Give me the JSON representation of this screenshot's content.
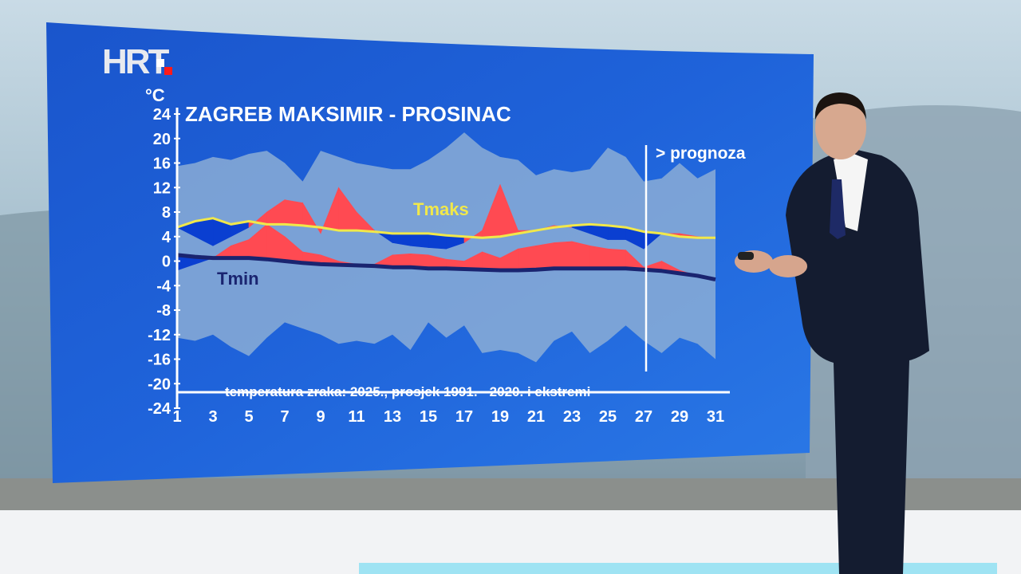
{
  "broadcaster": {
    "logo_text": "HRT"
  },
  "chart_data": {
    "type": "area",
    "title": "ZAGREB MAKSIMIR - PROSINAC",
    "subtitle": "temperatura zraka: 2025., prosjek 1991. - 2020. i ekstremi",
    "ylabel": "°C",
    "xlabel": "",
    "ylim": [
      -24,
      24
    ],
    "xlim": [
      1,
      31
    ],
    "y_ticks": [
      24,
      20,
      16,
      12,
      8,
      4,
      0,
      -4,
      -8,
      -12,
      -16,
      -20,
      -24
    ],
    "x_ticks": [
      1,
      3,
      5,
      7,
      9,
      11,
      13,
      15,
      17,
      19,
      21,
      23,
      25,
      27,
      29,
      31
    ],
    "forecast_from_day": 27,
    "forecast_label": "> prognoza",
    "grid": false,
    "days": [
      1,
      2,
      3,
      4,
      5,
      6,
      7,
      8,
      9,
      10,
      11,
      12,
      13,
      14,
      15,
      16,
      17,
      18,
      19,
      20,
      21,
      22,
      23,
      24,
      25,
      26,
      27,
      28,
      29,
      30,
      31
    ],
    "series": [
      {
        "name": "",
        "role": "record_max",
        "values": [
          15.5,
          16,
          17,
          16.5,
          17.5,
          18,
          16,
          13,
          18,
          17,
          16,
          15.5,
          15,
          15,
          16.5,
          18.5,
          21,
          18.5,
          17,
          16.5,
          14,
          15,
          14.5,
          15,
          18.5,
          17,
          13,
          13.5,
          16,
          13.5,
          15
        ]
      },
      {
        "name": "",
        "role": "record_min",
        "values": [
          -12.5,
          -13,
          -12,
          -14,
          -15.5,
          -12.5,
          -10,
          -11,
          -12,
          -13.5,
          -13,
          -13.5,
          -12,
          -14.5,
          -10,
          -12.5,
          -10.5,
          -15,
          -14.5,
          -15,
          -16.5,
          -13,
          -11.5,
          -15,
          -13,
          -10.5,
          -13,
          -15,
          -12.5,
          -13.5,
          -16
        ]
      },
      {
        "name": "Tmaks",
        "role": "average_max",
        "values": [
          5.5,
          6.5,
          7,
          6,
          6.5,
          6,
          6,
          5.8,
          5.5,
          5,
          5,
          4.8,
          4.5,
          4.5,
          4.5,
          4.2,
          4,
          3.8,
          4,
          4.5,
          5,
          5.5,
          5.8,
          6,
          5.8,
          5.5,
          4.8,
          4.5,
          4,
          3.8,
          3.8
        ]
      },
      {
        "name": "",
        "role": "observed_max_2025",
        "values": [
          5.5,
          4,
          2.5,
          4,
          5.5,
          8,
          10,
          9.5,
          4.5,
          12,
          8,
          5,
          3,
          2.5,
          2.2,
          2,
          3,
          5,
          12.5,
          5,
          5,
          5.8,
          5.5,
          4.5,
          3.5,
          3.5,
          2,
          4.5,
          4.5,
          4,
          3.8
        ]
      },
      {
        "name": "Tmin",
        "role": "average_min",
        "values": [
          1,
          0.7,
          0.5,
          0.5,
          0.5,
          0.3,
          0,
          -0.3,
          -0.5,
          -0.6,
          -0.7,
          -0.8,
          -1,
          -1,
          -1.2,
          -1.2,
          -1.3,
          -1.4,
          -1.5,
          -1.5,
          -1.4,
          -1.2,
          -1.2,
          -1.2,
          -1.2,
          -1.2,
          -1.4,
          -1.6,
          -2,
          -2.4,
          -3
        ]
      },
      {
        "name": "",
        "role": "observed_min_2025",
        "values": [
          -1.5,
          -0.5,
          0.5,
          2.5,
          3.5,
          6,
          4,
          1.5,
          1,
          0,
          -0.5,
          -0.5,
          1,
          1.2,
          1,
          0.3,
          0,
          1.5,
          0.5,
          2,
          2.5,
          3,
          3.2,
          2.5,
          2,
          1.8,
          -1,
          0,
          -1.5,
          -2.4,
          -3
        ]
      }
    ]
  },
  "colors": {
    "panel_blue": "#1e5fd4",
    "band": "#8fb0d6",
    "observed_warm": "#ff4a52",
    "observed_cold": "#0a3fd1",
    "tmaks_line": "#f1e84a",
    "tmin_line": "#1a2470",
    "text_white": "#ffffff"
  }
}
